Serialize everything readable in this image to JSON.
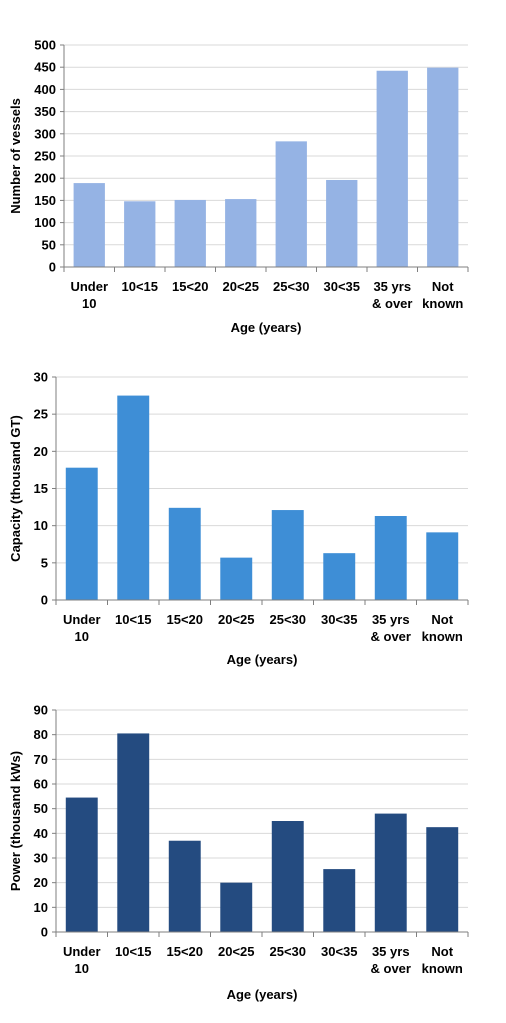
{
  "chart_data": [
    {
      "type": "bar",
      "categories": [
        [
          "Under",
          "10"
        ],
        [
          "10<15"
        ],
        [
          "15<20"
        ],
        [
          "20<25"
        ],
        [
          "25<30"
        ],
        [
          "30<35"
        ],
        [
          "35 yrs",
          "& over"
        ],
        [
          "Not",
          "known"
        ]
      ],
      "values": [
        189,
        148,
        151,
        153,
        283,
        196,
        442,
        449
      ],
      "xlabel": "Age (years)",
      "ylabel": "Number of vessels",
      "ylim": [
        0,
        500
      ],
      "yticks": [
        0,
        50,
        100,
        150,
        200,
        250,
        300,
        350,
        400,
        450,
        500
      ],
      "color": "#95b3e4",
      "grid": true
    },
    {
      "type": "bar",
      "categories": [
        [
          "Under",
          "10"
        ],
        [
          "10<15"
        ],
        [
          "15<20"
        ],
        [
          "20<25"
        ],
        [
          "25<30"
        ],
        [
          "30<35"
        ],
        [
          "35 yrs",
          "& over"
        ],
        [
          "Not",
          "known"
        ]
      ],
      "values": [
        17.8,
        27.5,
        12.4,
        5.7,
        12.1,
        6.3,
        11.3,
        9.1
      ],
      "xlabel": "Age (years)",
      "ylabel": "Capacity (thousand GT)",
      "ylim": [
        0,
        30
      ],
      "yticks": [
        0,
        5,
        10,
        15,
        20,
        25,
        30
      ],
      "color": "#3e8ed6",
      "grid": true
    },
    {
      "type": "bar",
      "categories": [
        [
          "Under",
          "10"
        ],
        [
          "10<15"
        ],
        [
          "15<20"
        ],
        [
          "20<25"
        ],
        [
          "25<30"
        ],
        [
          "30<35"
        ],
        [
          "35 yrs",
          "& over"
        ],
        [
          "Not",
          "known"
        ]
      ],
      "values": [
        54.5,
        80.5,
        37,
        20,
        45,
        25.5,
        48,
        42.5
      ],
      "xlabel": "Age (years)",
      "ylabel": "Power (thousand kWs)",
      "ylim": [
        0,
        90
      ],
      "yticks": [
        0,
        10,
        20,
        30,
        40,
        50,
        60,
        70,
        80,
        90
      ],
      "color": "#244b80",
      "grid": true
    }
  ]
}
